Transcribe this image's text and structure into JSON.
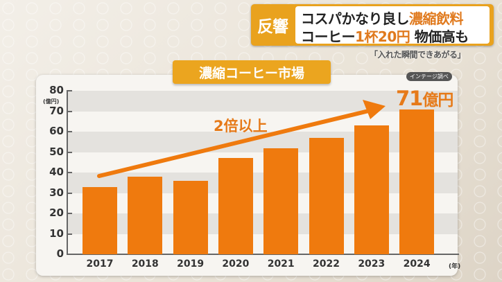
{
  "headline": {
    "tag": "反響",
    "line1_prefix": "コスパかなり良し",
    "line1_highlight": "濃縮飲料",
    "line2_prefix": "コーヒー",
    "line2_highlight": "1杯20円",
    "line2_suffix": "物価高も",
    "quote": "「入れた瞬間できあがる」"
  },
  "chart": {
    "title": "濃縮コーヒー市場",
    "source": "インテージ調べ",
    "annotation": "2倍以上",
    "highlight_value": "71",
    "highlight_unit": "億円",
    "y_unit": "(億円)",
    "x_unit": "(年)"
  },
  "colors": {
    "bar": "#ef7a0e",
    "accent": "#e67a19",
    "banner": "#eba51f"
  },
  "chart_data": {
    "type": "bar",
    "title": "濃縮コーヒー市場",
    "categories": [
      "2017",
      "2018",
      "2019",
      "2020",
      "2021",
      "2022",
      "2023",
      "2024"
    ],
    "values": [
      33,
      38,
      36,
      47,
      52,
      57,
      63,
      71
    ],
    "xlabel": "(年)",
    "ylabel": "(億円)",
    "ylim": [
      0,
      80
    ],
    "yticks": [
      0,
      10,
      20,
      30,
      40,
      50,
      60,
      70,
      80
    ],
    "grid": "alternating horizontal bands",
    "annotations": [
      "2倍以上",
      "71億円"
    ],
    "source": "インテージ調べ"
  }
}
